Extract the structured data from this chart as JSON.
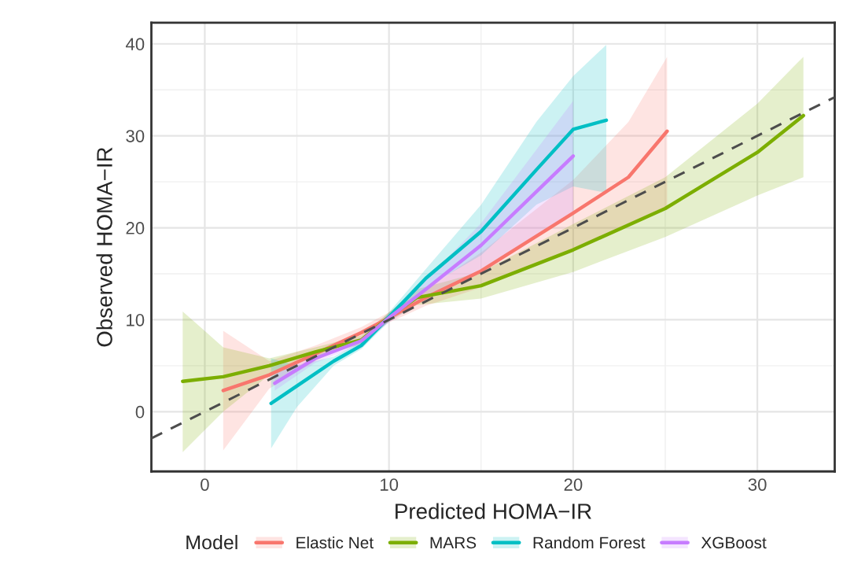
{
  "chart_data": {
    "type": "line",
    "xlabel": "Predicted HOMA−IR",
    "ylabel": "Observed HOMA−IR",
    "legend_title": "Model",
    "legend": "bottom",
    "grid": true,
    "marker": "none",
    "xlim": [
      -2.9,
      34.2
    ],
    "ylim": [
      -6.5,
      42.3
    ],
    "xticks": [
      0,
      10,
      20,
      30
    ],
    "yticks": [
      0,
      10,
      20,
      30,
      40
    ],
    "series": [
      {
        "name": "Elastic Net",
        "color": "#f8766d",
        "x": [
          1.0,
          3.5,
          6,
          8.5,
          10,
          12,
          15,
          20,
          23,
          25.1
        ],
        "values": [
          2.3,
          4.0,
          6.3,
          8.6,
          10.2,
          12.4,
          15.3,
          21.6,
          25.5,
          30.5
        ],
        "lower": [
          -4.2,
          2.5,
          5.5,
          8.0,
          9.7,
          11.5,
          13.5,
          17.5,
          20.5,
          22.3
        ],
        "upper": [
          8.8,
          5.5,
          7.2,
          9.2,
          10.8,
          13.3,
          17.3,
          25.2,
          31.5,
          38.6
        ]
      },
      {
        "name": "MARS",
        "color": "#7cae00",
        "x": [
          -1.2,
          1,
          3.5,
          6,
          8.5,
          10,
          11.5,
          15,
          20,
          25,
          30,
          32.5
        ],
        "values": [
          3.3,
          3.8,
          5.0,
          6.5,
          7.8,
          10.3,
          12.4,
          13.7,
          17.6,
          22.1,
          28.2,
          32.2
        ],
        "lower": [
          -4.4,
          0,
          4.0,
          6.0,
          7.3,
          9.8,
          11.6,
          12.3,
          15.2,
          19.0,
          23.5,
          25.5
        ],
        "upper": [
          10.9,
          7.0,
          5.8,
          7.0,
          8.3,
          10.8,
          13.3,
          15.2,
          20.4,
          25.5,
          33.5,
          38.6
        ]
      },
      {
        "name": "Random Forest",
        "color": "#00bfc4",
        "x": [
          3.6,
          5,
          7,
          8.5,
          10,
          12,
          15,
          18,
          20,
          21.8
        ],
        "values": [
          0.9,
          2.8,
          5.5,
          7.2,
          10.3,
          14.5,
          19.6,
          26.3,
          30.7,
          31.7
        ],
        "lower": [
          -4.0,
          0.5,
          5.0,
          6.8,
          9.8,
          13.5,
          17.0,
          22.5,
          24.5,
          23.8
        ],
        "upper": [
          5.8,
          5.0,
          6.0,
          7.6,
          10.8,
          15.5,
          22.5,
          31.5,
          36.5,
          39.9
        ]
      },
      {
        "name": "XGBoost",
        "color": "#c77cff",
        "x": [
          3.8,
          6,
          8.5,
          10,
          12,
          15,
          20
        ],
        "values": [
          3.1,
          5.8,
          7.7,
          10.2,
          13.3,
          18.1,
          27.8
        ],
        "lower": [
          2.3,
          5.3,
          7.3,
          9.7,
          12.3,
          15.5,
          21.5
        ],
        "upper": [
          4.0,
          6.3,
          8.1,
          10.7,
          14.3,
          20.5,
          33.8
        ]
      },
      {
        "color": "#4d4d4d",
        "line_style": "dashed",
        "x": [
          -2.9,
          34.2
        ],
        "values": [
          -2.9,
          34.2
        ]
      }
    ]
  }
}
